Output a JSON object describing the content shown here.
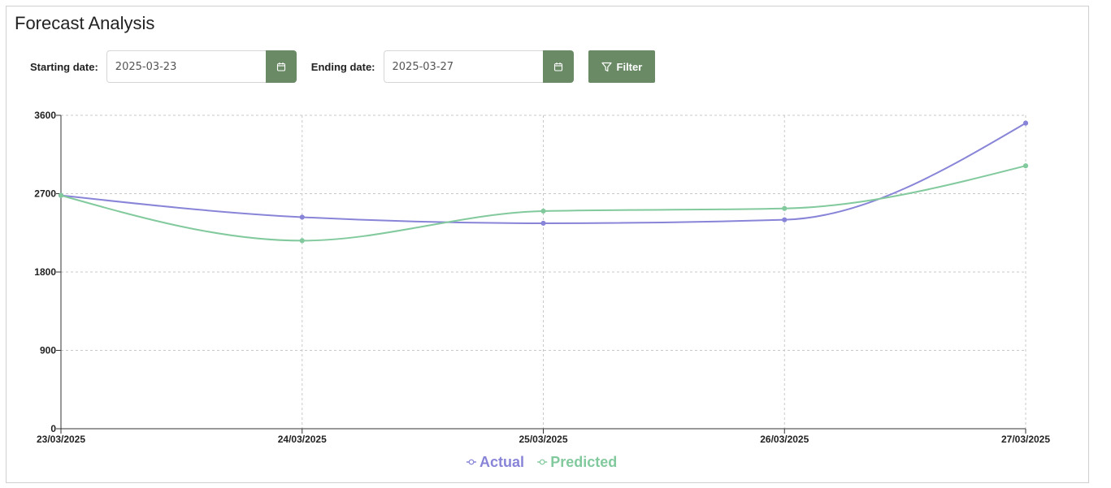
{
  "page": {
    "title": "Forecast Analysis"
  },
  "filters": {
    "start_label": "Starting date:",
    "start_value": "2025-03-23",
    "end_label": "Ending date:",
    "end_value": "2025-03-27",
    "filter_label": "Filter",
    "button_color": "#6a8a66"
  },
  "chart_data": {
    "type": "line",
    "x": [
      "23/03/2025",
      "24/03/2025",
      "25/03/2025",
      "26/03/2025",
      "27/03/2025"
    ],
    "series": [
      {
        "name": "Actual",
        "color": "#8884d8",
        "values": [
          2680,
          2430,
          2360,
          2400,
          3510
        ]
      },
      {
        "name": "Predicted",
        "color": "#82ca9d",
        "values": [
          2680,
          2160,
          2500,
          2530,
          3020
        ]
      }
    ],
    "y_ticks": [
      0,
      900,
      1800,
      2700,
      3600
    ],
    "ylim": [
      0,
      3600
    ],
    "grid": true,
    "legend": "bottom-center",
    "curve": "monotone"
  }
}
